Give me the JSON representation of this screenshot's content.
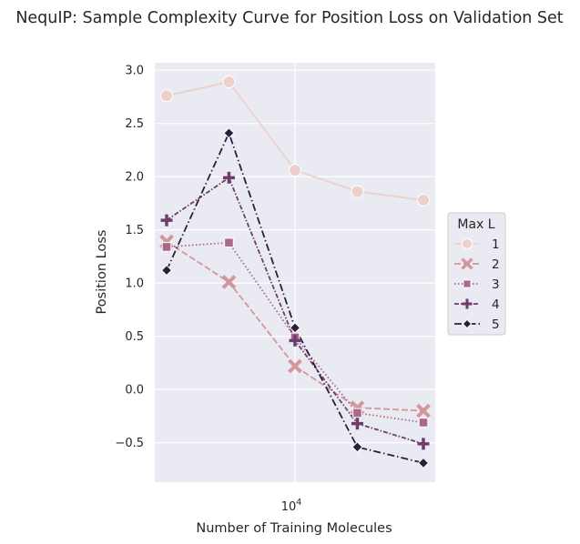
{
  "chart_data": {
    "type": "line",
    "title": "NequIP: Sample Complexity Curve for Position Loss on Validation Set",
    "xlabel": "Number of Training Molecules",
    "ylabel": "Position Loss",
    "x_scale": "log",
    "x_tick_label": {
      "base": "10",
      "exponent": "4"
    },
    "x": [
      5000,
      7000,
      10000,
      14000,
      20000
    ],
    "yticks": [
      "−0.5",
      "0.0",
      "0.5",
      "1.0",
      "1.5",
      "2.0",
      "2.5",
      "3.0"
    ],
    "ylim": [
      -0.87,
      3.07
    ],
    "grid": true,
    "legend": {
      "title": "Max L",
      "placement": "right"
    },
    "series": [
      {
        "name": "1",
        "color": "#ecd0cb",
        "dash": "solid",
        "marker": "circle",
        "values": [
          2.76,
          2.89,
          2.06,
          1.86,
          1.78
        ]
      },
      {
        "name": "2",
        "color": "#d4969d",
        "dash": "dashed",
        "marker": "x",
        "values": [
          1.39,
          1.01,
          0.22,
          -0.17,
          -0.2
        ]
      },
      {
        "name": "3",
        "color": "#aa6889",
        "dash": "dotted",
        "marker": "square",
        "values": [
          1.34,
          1.38,
          0.49,
          -0.22,
          -0.31
        ]
      },
      {
        "name": "4",
        "color": "#6f3d6d",
        "dash": "dashdot-long",
        "marker": "plus",
        "values": [
          1.59,
          1.99,
          0.46,
          -0.32,
          -0.51
        ]
      },
      {
        "name": "5",
        "color": "#2d1e3e",
        "dash": "dashdot",
        "marker": "diamond",
        "values": [
          1.12,
          2.41,
          0.58,
          -0.54,
          -0.69
        ]
      }
    ]
  }
}
